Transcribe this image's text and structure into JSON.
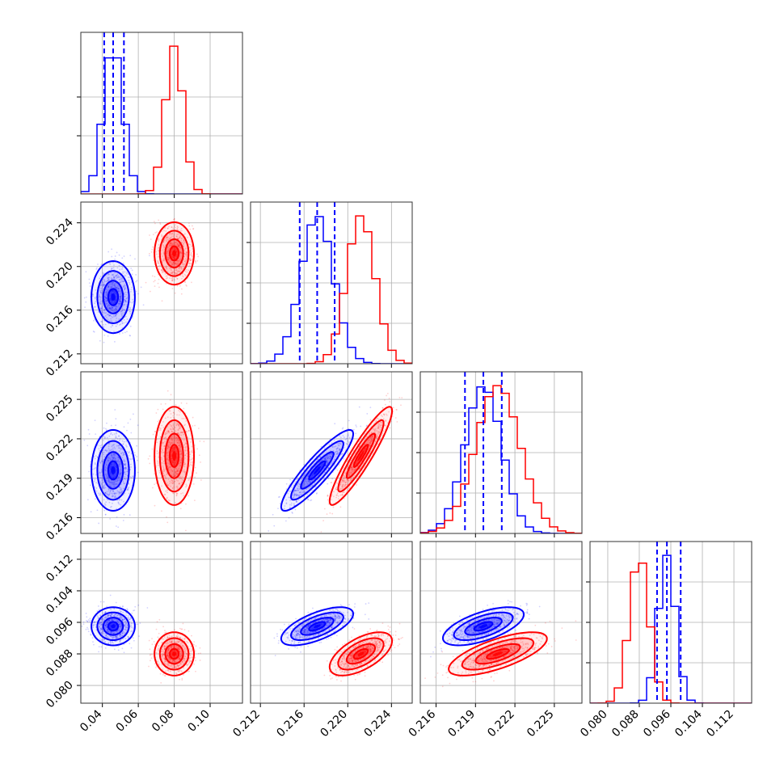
{
  "chart_data": {
    "type": "scatter",
    "subtype": "corner-plot",
    "title": "",
    "parameters": [
      {
        "ticks": [
          0.04,
          0.06,
          0.08,
          0.1
        ],
        "tick_labels": [
          "0.04",
          "0.06",
          "0.08",
          "0.10"
        ],
        "range": [
          0.028,
          0.118
        ]
      },
      {
        "ticks": [
          0.212,
          0.216,
          0.22,
          0.224
        ],
        "tick_labels": [
          "0.212",
          "0.216",
          "0.220",
          "0.224"
        ],
        "range": [
          0.2111,
          0.2259
        ]
      },
      {
        "ticks": [
          0.216,
          0.219,
          0.222,
          0.225
        ],
        "tick_labels": [
          "0.216",
          "0.219",
          "0.222",
          "0.225"
        ],
        "range": [
          0.2148,
          0.2271
        ]
      },
      {
        "ticks": [
          0.08,
          0.088,
          0.096,
          0.104,
          0.112
        ],
        "tick_labels": [
          "0.080",
          "0.088",
          "0.096",
          "0.104",
          "0.112"
        ],
        "range": [
          0.0755,
          0.1165
        ]
      }
    ],
    "series": [
      {
        "color": "#0000ff",
        "means": [
          0.046,
          0.2172,
          0.2196,
          0.095
        ],
        "sds": [
          0.0055,
          0.0015,
          0.0014,
          0.0022
        ],
        "corr": [
          [
            1,
            0,
            0,
            0
          ],
          [
            0,
            1,
            0.9,
            0.65
          ],
          [
            0,
            0.9,
            1,
            0.62
          ],
          [
            0,
            0.65,
            0.62,
            1
          ]
        ],
        "quantiles": [
          [
            0.041,
            0.046,
            0.052
          ],
          [
            0.2156,
            0.2172,
            0.2188
          ],
          [
            0.2182,
            0.2196,
            0.221
          ],
          [
            0.0925,
            0.095,
            0.0985
          ]
        ]
      },
      {
        "color": "#ff0000",
        "means": [
          0.08,
          0.2212,
          0.2207,
          0.088
        ],
        "sds": [
          0.005,
          0.0013,
          0.0017,
          0.0025
        ],
        "corr": [
          [
            1,
            0,
            0,
            0
          ],
          [
            0,
            1,
            0.92,
            0.6
          ],
          [
            0,
            0.92,
            1,
            0.7
          ],
          [
            0,
            0.6,
            0.7,
            1
          ]
        ]
      }
    ],
    "xlabel": "",
    "ylabel": "",
    "legend": "none",
    "grid": true
  }
}
